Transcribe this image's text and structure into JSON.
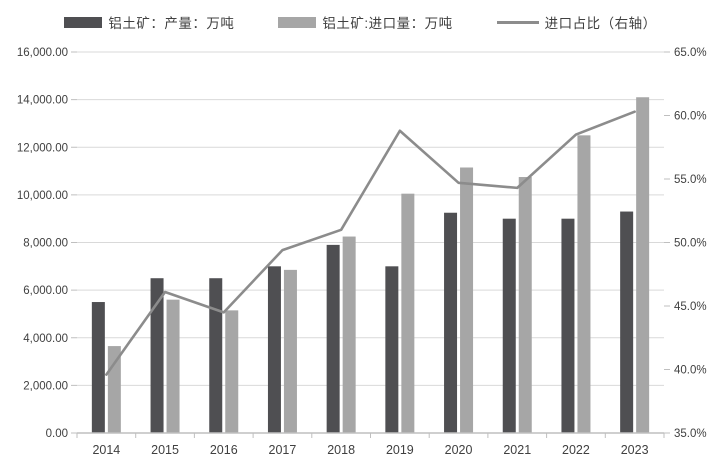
{
  "chart_data": {
    "type": "combo",
    "categories": [
      "2014",
      "2015",
      "2016",
      "2017",
      "2018",
      "2019",
      "2020",
      "2021",
      "2022",
      "2023"
    ],
    "series": [
      {
        "name": "铝土矿：产量：万吨",
        "type": "bar",
        "axis": "left",
        "color": "#4f4f52",
        "values": [
          5500,
          6500,
          6500,
          7000,
          7900,
          7000,
          9250,
          9000,
          9000,
          9300
        ]
      },
      {
        "name": "铝土矿:进口量：万吨",
        "type": "bar",
        "axis": "left",
        "color": "#a6a6a6",
        "values": [
          3650,
          5600,
          5150,
          6850,
          8250,
          10050,
          11150,
          10750,
          12500,
          14100
        ]
      },
      {
        "name": "进口占比（右轴）",
        "type": "line",
        "axis": "right",
        "color": "#8c8c8c",
        "values": [
          39.6,
          46.1,
          44.5,
          49.4,
          51.0,
          58.8,
          54.7,
          54.3,
          58.5,
          60.3
        ]
      }
    ],
    "left_axis": {
      "min": 0,
      "max": 16000,
      "tick_labels": [
        "0.00",
        "2,000.00",
        "4,000.00",
        "6,000.00",
        "8,000.00",
        "10,000.00",
        "12,000.00",
        "14,000.00",
        "16,000.00"
      ]
    },
    "right_axis": {
      "min": 35,
      "max": 65,
      "tick_labels": [
        "35.0%",
        "40.0%",
        "45.0%",
        "50.0%",
        "55.0%",
        "60.0%",
        "65.0%"
      ]
    },
    "grid": true,
    "legend_position": "top",
    "colors": {
      "gridline": "#d9d9d9",
      "axis_line": "#bfbfbf",
      "tick": "#bfbfbf",
      "label_text": "#404040"
    }
  }
}
